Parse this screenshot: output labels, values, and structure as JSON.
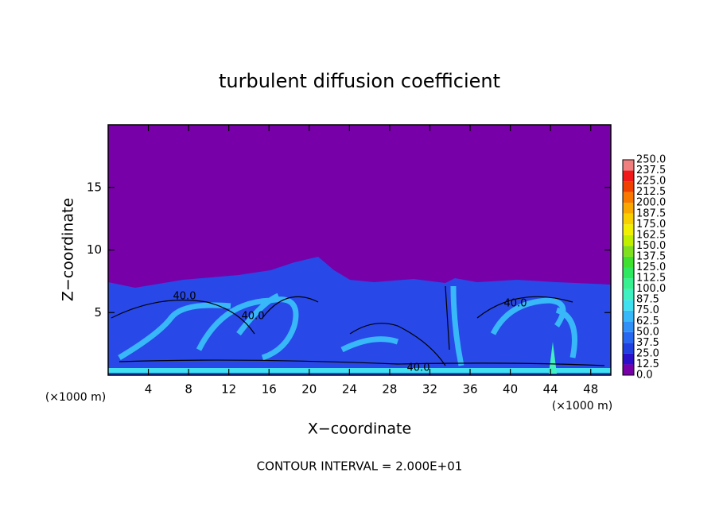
{
  "chart_data": {
    "type": "contour",
    "title": "turbulent diffusion coefficient",
    "x_label": "X−coordinate",
    "y_label": "Z−coordinate",
    "x_unit": "(×1000 m)",
    "y_unit": "(×1000 m)",
    "xlim": [
      0,
      50
    ],
    "ylim": [
      0,
      20
    ],
    "xticks": [
      4,
      8,
      12,
      16,
      20,
      24,
      28,
      32,
      36,
      40,
      44,
      48
    ],
    "yticks": [
      5,
      10,
      15
    ],
    "contour_labels": [
      "40.0",
      "40.0",
      "40.0",
      "40.0"
    ],
    "footer": "CONTOUR INTERVAL = 2.000E+01",
    "colorbar": {
      "levels": [
        {
          "value": 0,
          "label": "0.0"
        },
        {
          "value": 12.5,
          "label": "12.5"
        },
        {
          "value": 25,
          "label": "25.0"
        },
        {
          "value": 37.5,
          "label": "37.5"
        },
        {
          "value": 50,
          "label": "50.0"
        },
        {
          "value": 62.5,
          "label": "62.5"
        },
        {
          "value": 75,
          "label": "75.0"
        },
        {
          "value": 87.5,
          "label": "87.5"
        },
        {
          "value": 100,
          "label": "100.0"
        },
        {
          "value": 112.5,
          "label": "112.5"
        },
        {
          "value": 125,
          "label": "125.0"
        },
        {
          "value": 137.5,
          "label": "137.5"
        },
        {
          "value": 150,
          "label": "150.0"
        },
        {
          "value": 162.5,
          "label": "162.5"
        },
        {
          "value": 175,
          "label": "175.0"
        },
        {
          "value": 187.5,
          "label": "187.5"
        },
        {
          "value": 200,
          "label": "200.0"
        },
        {
          "value": 212.5,
          "label": "212.5"
        },
        {
          "value": 225,
          "label": "225.0"
        },
        {
          "value": 237.5,
          "label": "237.5"
        },
        {
          "value": 250,
          "label": "250.0"
        }
      ],
      "colors": [
        "#7800a8",
        "#2a10c8",
        "#2040e0",
        "#2868f0",
        "#3090f8",
        "#38b8f8",
        "#40e0f0",
        "#40f0c0",
        "#38f090",
        "#30e860",
        "#40e030",
        "#80e020",
        "#c0f000",
        "#f0f000",
        "#f8d000",
        "#f8a800",
        "#f87800",
        "#f04000",
        "#f01818",
        "#f08080"
      ]
    }
  }
}
